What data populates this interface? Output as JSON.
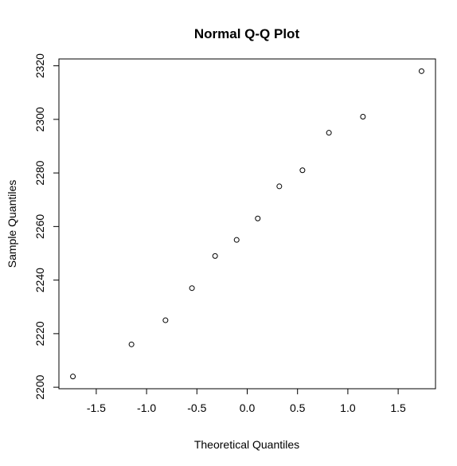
{
  "chart_data": {
    "type": "scatter",
    "title": "Normal Q-Q Plot",
    "xlabel": "Theoretical Quantiles",
    "ylabel": "Sample Quantiles",
    "x": [
      -1.732,
      -1.15,
      -0.812,
      -0.549,
      -0.319,
      -0.105,
      0.105,
      0.319,
      0.549,
      0.812,
      1.15,
      1.732
    ],
    "values": [
      2204,
      2216,
      2225,
      2237,
      2249,
      2255,
      2263,
      2275,
      2281,
      2295,
      2301,
      2318
    ],
    "color": "#000000",
    "xlim": [
      -1.871,
      1.871
    ],
    "xticks": [
      -1.5,
      {
        "value": -1,
        "label": "-1.0"
      },
      -0.5,
      {
        "value": 0,
        "label": "0.0"
      },
      0.5,
      {
        "value": 1,
        "label": "1.0"
      },
      1.5
    ],
    "ylim": [
      2199.44,
      2322.56
    ],
    "yticks": [
      2200,
      2220,
      2240,
      2260,
      2280,
      2300,
      2320
    ]
  }
}
